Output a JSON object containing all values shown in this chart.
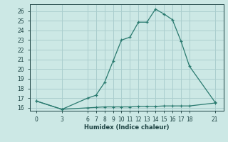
{
  "xlabel": "Humidex (Indice chaleur)",
  "x_ticks": [
    0,
    3,
    6,
    7,
    8,
    9,
    10,
    11,
    12,
    13,
    14,
    15,
    16,
    17,
    18,
    21
  ],
  "y_ticks": [
    16,
    17,
    18,
    19,
    20,
    21,
    22,
    23,
    24,
    25,
    26
  ],
  "ylim": [
    15.7,
    26.7
  ],
  "xlim": [
    -0.8,
    22.0
  ],
  "line1_x": [
    0,
    3,
    6,
    7,
    8,
    9,
    10,
    11,
    12,
    13,
    14,
    15,
    16,
    17,
    18,
    21
  ],
  "line1_y": [
    16.7,
    15.85,
    17.0,
    17.3,
    18.6,
    20.8,
    23.0,
    23.3,
    24.85,
    24.85,
    26.2,
    25.7,
    25.1,
    22.9,
    20.3,
    16.6
  ],
  "line2_x": [
    0,
    3,
    6,
    7,
    8,
    9,
    10,
    11,
    12,
    13,
    14,
    15,
    16,
    17,
    18,
    21
  ],
  "line2_y": [
    16.7,
    15.85,
    16.0,
    16.05,
    16.1,
    16.1,
    16.1,
    16.1,
    16.15,
    16.15,
    16.15,
    16.2,
    16.2,
    16.2,
    16.2,
    16.5
  ],
  "line_color": "#2a7a6f",
  "bg_color": "#cce8e5",
  "grid_color": "#aacece",
  "tick_font_size": 5.5,
  "xlabel_font_size": 6.0,
  "font_color": "#1a4040"
}
